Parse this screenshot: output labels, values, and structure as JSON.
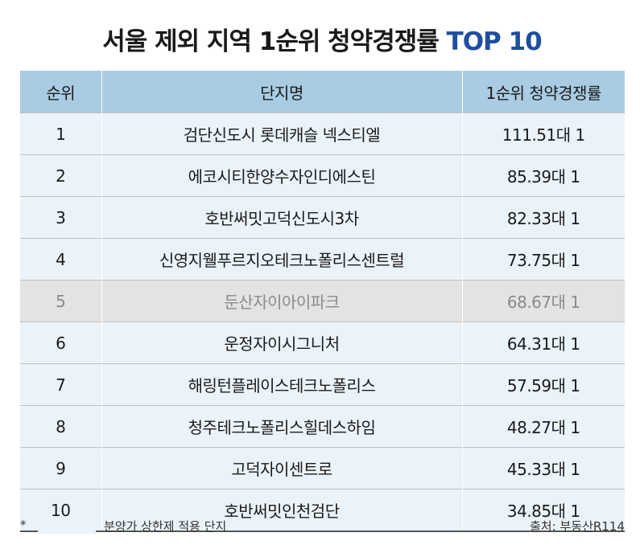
{
  "title": {
    "main": "서울 제외 지역 1순위 청약경쟁률",
    "accent": "TOP 10"
  },
  "colors": {
    "header_bg": "#a9cce3",
    "capped_row_bg": "#ebf3fa",
    "plain_row_bg": "#e3e3e3",
    "title_accent": "#1f4e9e"
  },
  "table": {
    "headers": [
      "순위",
      "단지명",
      "1순위 청약경쟁률"
    ],
    "rows": [
      {
        "rank": "1",
        "name": "검단신도시 롯데캐슬 넥스티엘",
        "rate": "111.51대 1",
        "price_cap": true
      },
      {
        "rank": "2",
        "name": "에코시티한양수자인디에스틴",
        "rate": "85.39대 1",
        "price_cap": true
      },
      {
        "rank": "3",
        "name": "호반써밋고덕신도시3차",
        "rate": "82.33대 1",
        "price_cap": true
      },
      {
        "rank": "4",
        "name": "신영지웰푸르지오테크노폴리스센트럴",
        "rate": "73.75대 1",
        "price_cap": true
      },
      {
        "rank": "5",
        "name": "둔산자이아이파크",
        "rate": "68.67대 1",
        "price_cap": false
      },
      {
        "rank": "6",
        "name": "운정자이시그니처",
        "rate": "64.31대 1",
        "price_cap": true
      },
      {
        "rank": "7",
        "name": "해링턴플레이스테크노폴리스",
        "rate": "57.59대 1",
        "price_cap": true
      },
      {
        "rank": "8",
        "name": "청주테크노폴리스힐데스하임",
        "rate": "48.27대 1",
        "price_cap": true
      },
      {
        "rank": "9",
        "name": "고덕자이센트로",
        "rate": "45.33대 1",
        "price_cap": true
      },
      {
        "rank": "10",
        "name": "호반써밋인천검단",
        "rate": "34.85대 1",
        "price_cap": true
      }
    ]
  },
  "footer": {
    "legend_mark": "*",
    "legend_text": "분양가 상한제 적용 단지",
    "source": "출처: 부동산R114"
  }
}
